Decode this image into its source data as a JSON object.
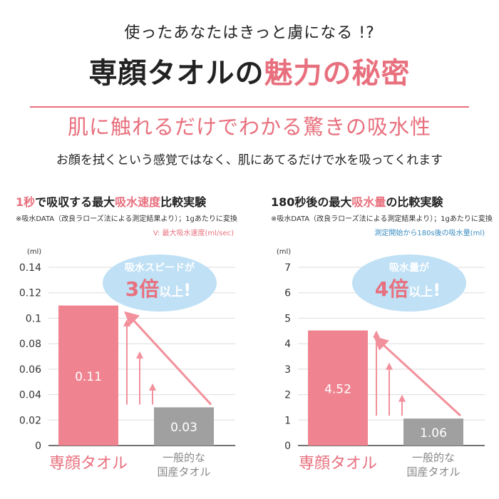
{
  "header": {
    "tagline": "使ったあなたはきっと虜になる !?",
    "title_main": "専顔タオルの",
    "title_highlight": "魅力の秘密",
    "subtitle": "肌に触れるだけでわかる驚きの吸水性",
    "description": "お顔を拭くという感覚ではなく、肌にあてるだけで水を吸ってくれます"
  },
  "colors": {
    "accent": "#e8707e",
    "bar_primary": "#ef8490",
    "bar_secondary": "#a0a0a0",
    "bubble": "#bfe0f5",
    "bubble_text": "#5aaee0"
  },
  "chart_data": [
    {
      "type": "bar",
      "title_parts": [
        "1秒",
        "で吸収する最大",
        "吸水速度",
        "比較実験"
      ],
      "note": "※吸水DATA（改良ラローズ法による測定結果より）；1gあたりに変換",
      "legend_note": "V: 最大吸水速度(ml/sec)",
      "unit": "(ml)",
      "ylim": [
        0,
        0.14
      ],
      "yticks": [
        "0",
        "0.02",
        "0.04",
        "0.06",
        "0.08",
        "0.1",
        "0.12",
        "0.14"
      ],
      "categories": [
        "専顔タオル",
        "一般的な\n国産タオル"
      ],
      "values": [
        0.11,
        0.03
      ],
      "value_labels": [
        "0.11",
        "0.03"
      ],
      "bubble": {
        "line1": "吸水スピードが",
        "big": "3倍",
        "small": "以上",
        "mark": "!"
      }
    },
    {
      "type": "bar",
      "title_parts": [
        "180秒後の最大",
        "吸水量",
        "の比較実験"
      ],
      "note": "※吸水DATA（改良ラローズ法による測定結果より）；1gあたりに変換",
      "legend_note": "測定開始から180s後の吸水量(ml)",
      "unit": "(ml)",
      "ylim": [
        0,
        7
      ],
      "yticks": [
        "0",
        "1",
        "2",
        "3",
        "4",
        "5",
        "6",
        "7"
      ],
      "categories": [
        "専顔タオル",
        "一般的な\n国産タオル"
      ],
      "values": [
        4.52,
        1.06
      ],
      "value_labels": [
        "4.52",
        "1.06"
      ],
      "bubble": {
        "line1": "吸水量が",
        "big": "4倍",
        "small": "以上",
        "mark": "!"
      }
    }
  ]
}
